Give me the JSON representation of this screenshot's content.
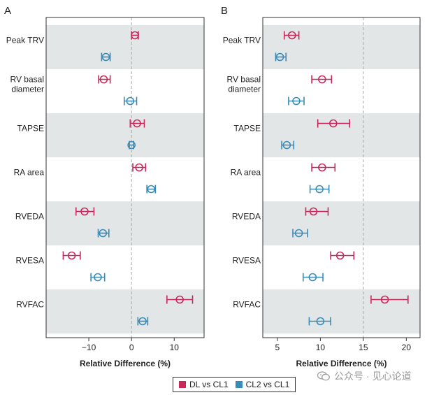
{
  "chart_data": [
    {
      "panel_label": "A",
      "type": "forest",
      "xlabel": "Relative Difference (%)",
      "xlim": [
        -20,
        17
      ],
      "xticks": [
        -10,
        0,
        10
      ],
      "xtick_labels": [
        "−10",
        "0",
        "10"
      ],
      "reference_line": 0,
      "categories": [
        "Peak TRV",
        "RV basal diameter",
        "TAPSE",
        "RA area",
        "RVEDA",
        "RVESA",
        "RVFAC"
      ],
      "category_lines": [
        [
          "Peak TRV"
        ],
        [
          "RV basal",
          "diameter"
        ],
        [
          "TAPSE"
        ],
        [
          "RA area"
        ],
        [
          "RVEDA"
        ],
        [
          "RVESA"
        ],
        [
          "RVFAC"
        ]
      ],
      "series": [
        {
          "name": "DL vs CL1",
          "color": "#c8285a",
          "points": [
            {
              "est": 0.8,
              "lo": 0.0,
              "hi": 1.6
            },
            {
              "est": -6.5,
              "lo": -7.7,
              "hi": -5.0
            },
            {
              "est": 1.3,
              "lo": -0.3,
              "hi": 3.0
            },
            {
              "est": 1.8,
              "lo": 0.3,
              "hi": 3.3
            },
            {
              "est": -11.0,
              "lo": -13.0,
              "hi": -8.8
            },
            {
              "est": -14.0,
              "lo": -16.0,
              "hi": -12.0
            },
            {
              "est": 11.3,
              "lo": 8.3,
              "hi": 14.3
            }
          ]
        },
        {
          "name": "CL2 vs CL1",
          "color": "#3a8bb8",
          "points": [
            {
              "est": -6.0,
              "lo": -7.0,
              "hi": -5.0
            },
            {
              "est": -0.3,
              "lo": -1.7,
              "hi": 1.2
            },
            {
              "est": 0.0,
              "lo": -0.5,
              "hi": 0.5
            },
            {
              "est": 4.6,
              "lo": 3.6,
              "hi": 5.6
            },
            {
              "est": -6.7,
              "lo": -7.8,
              "hi": -5.3
            },
            {
              "est": -7.9,
              "lo": -9.5,
              "hi": -6.3
            },
            {
              "est": 2.6,
              "lo": 1.5,
              "hi": 3.8
            }
          ]
        }
      ]
    },
    {
      "panel_label": "B",
      "type": "forest",
      "xlabel": "Relative Difference (%)",
      "xlim": [
        3.3,
        21.6
      ],
      "xticks": [
        5,
        10,
        15,
        20
      ],
      "xtick_labels": [
        "5",
        "10",
        "15",
        "20"
      ],
      "reference_line": 15,
      "categories": [
        "Peak TRV",
        "RV basal diameter",
        "TAPSE",
        "RA area",
        "RVEDA",
        "RVESA",
        "RVFAC"
      ],
      "category_lines": [
        [
          "Peak TRV"
        ],
        [
          "RV basal",
          "diameter"
        ],
        [
          "TAPSE"
        ],
        [
          "RA area"
        ],
        [
          "RVEDA"
        ],
        [
          "RVESA"
        ],
        [
          "RVFAC"
        ]
      ],
      "series": [
        {
          "name": "DL vs CL1",
          "color": "#c8285a",
          "points": [
            {
              "est": 6.7,
              "lo": 5.8,
              "hi": 7.5
            },
            {
              "est": 10.2,
              "lo": 9.0,
              "hi": 11.3
            },
            {
              "est": 11.5,
              "lo": 9.7,
              "hi": 13.4
            },
            {
              "est": 10.2,
              "lo": 9.0,
              "hi": 11.7
            },
            {
              "est": 9.2,
              "lo": 8.3,
              "hi": 10.9
            },
            {
              "est": 12.3,
              "lo": 11.2,
              "hi": 13.9
            },
            {
              "est": 17.5,
              "lo": 15.9,
              "hi": 20.2
            }
          ]
        },
        {
          "name": "CL2 vs CL1",
          "color": "#3a8bb8",
          "points": [
            {
              "est": 5.3,
              "lo": 4.8,
              "hi": 6.0
            },
            {
              "est": 7.2,
              "lo": 6.3,
              "hi": 8.1
            },
            {
              "est": 6.1,
              "lo": 5.5,
              "hi": 6.9
            },
            {
              "est": 9.9,
              "lo": 8.8,
              "hi": 11.0
            },
            {
              "est": 7.5,
              "lo": 6.8,
              "hi": 8.5
            },
            {
              "est": 9.1,
              "lo": 8.0,
              "hi": 10.3
            },
            {
              "est": 10.0,
              "lo": 8.7,
              "hi": 11.2
            }
          ]
        }
      ]
    }
  ],
  "legend": {
    "items": [
      {
        "name": "DL vs CL1",
        "color": "#c8285a"
      },
      {
        "name": "CL2 vs CL1",
        "color": "#3a8bb8"
      }
    ]
  },
  "watermark": {
    "text": "公众号 · 见心论道"
  }
}
